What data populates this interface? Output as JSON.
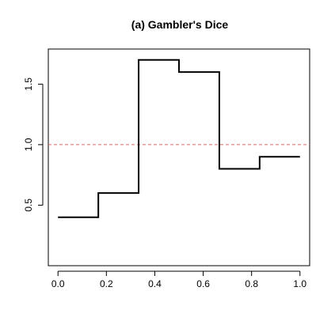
{
  "chart_data": {
    "type": "line",
    "title": "(a)  Gambler's Dice",
    "xlabel": "",
    "ylabel": "",
    "xlim": [
      -0.04,
      1.04
    ],
    "ylim": [
      0.0,
      1.79
    ],
    "x_ticks": [
      {
        "value": 0.0,
        "label": "0.0"
      },
      {
        "value": 0.2,
        "label": "0.2"
      },
      {
        "value": 0.4,
        "label": "0.4"
      },
      {
        "value": 0.6,
        "label": "0.6"
      },
      {
        "value": 0.8,
        "label": "0.8"
      },
      {
        "value": 1.0,
        "label": "1.0"
      }
    ],
    "y_ticks": [
      {
        "value": 0.5,
        "label": "0.5"
      },
      {
        "value": 1.0,
        "label": "1.0"
      },
      {
        "value": 1.5,
        "label": "1.5"
      }
    ],
    "series": [
      {
        "style": "step",
        "color": "#000000",
        "x": [
          0.0,
          0.1667,
          0.1667,
          0.3333,
          0.3333,
          0.5,
          0.5,
          0.6667,
          0.6667,
          0.8333,
          0.8333,
          1.0
        ],
        "y": [
          0.4,
          0.4,
          0.6,
          0.6,
          1.7,
          1.7,
          1.6,
          1.6,
          0.8,
          0.8,
          0.9,
          0.9
        ]
      }
    ],
    "reference_lines": [
      {
        "orientation": "horizontal",
        "y": 1.0,
        "color": "#e06666",
        "dashed": true
      }
    ],
    "grid": false,
    "legend": "none"
  }
}
